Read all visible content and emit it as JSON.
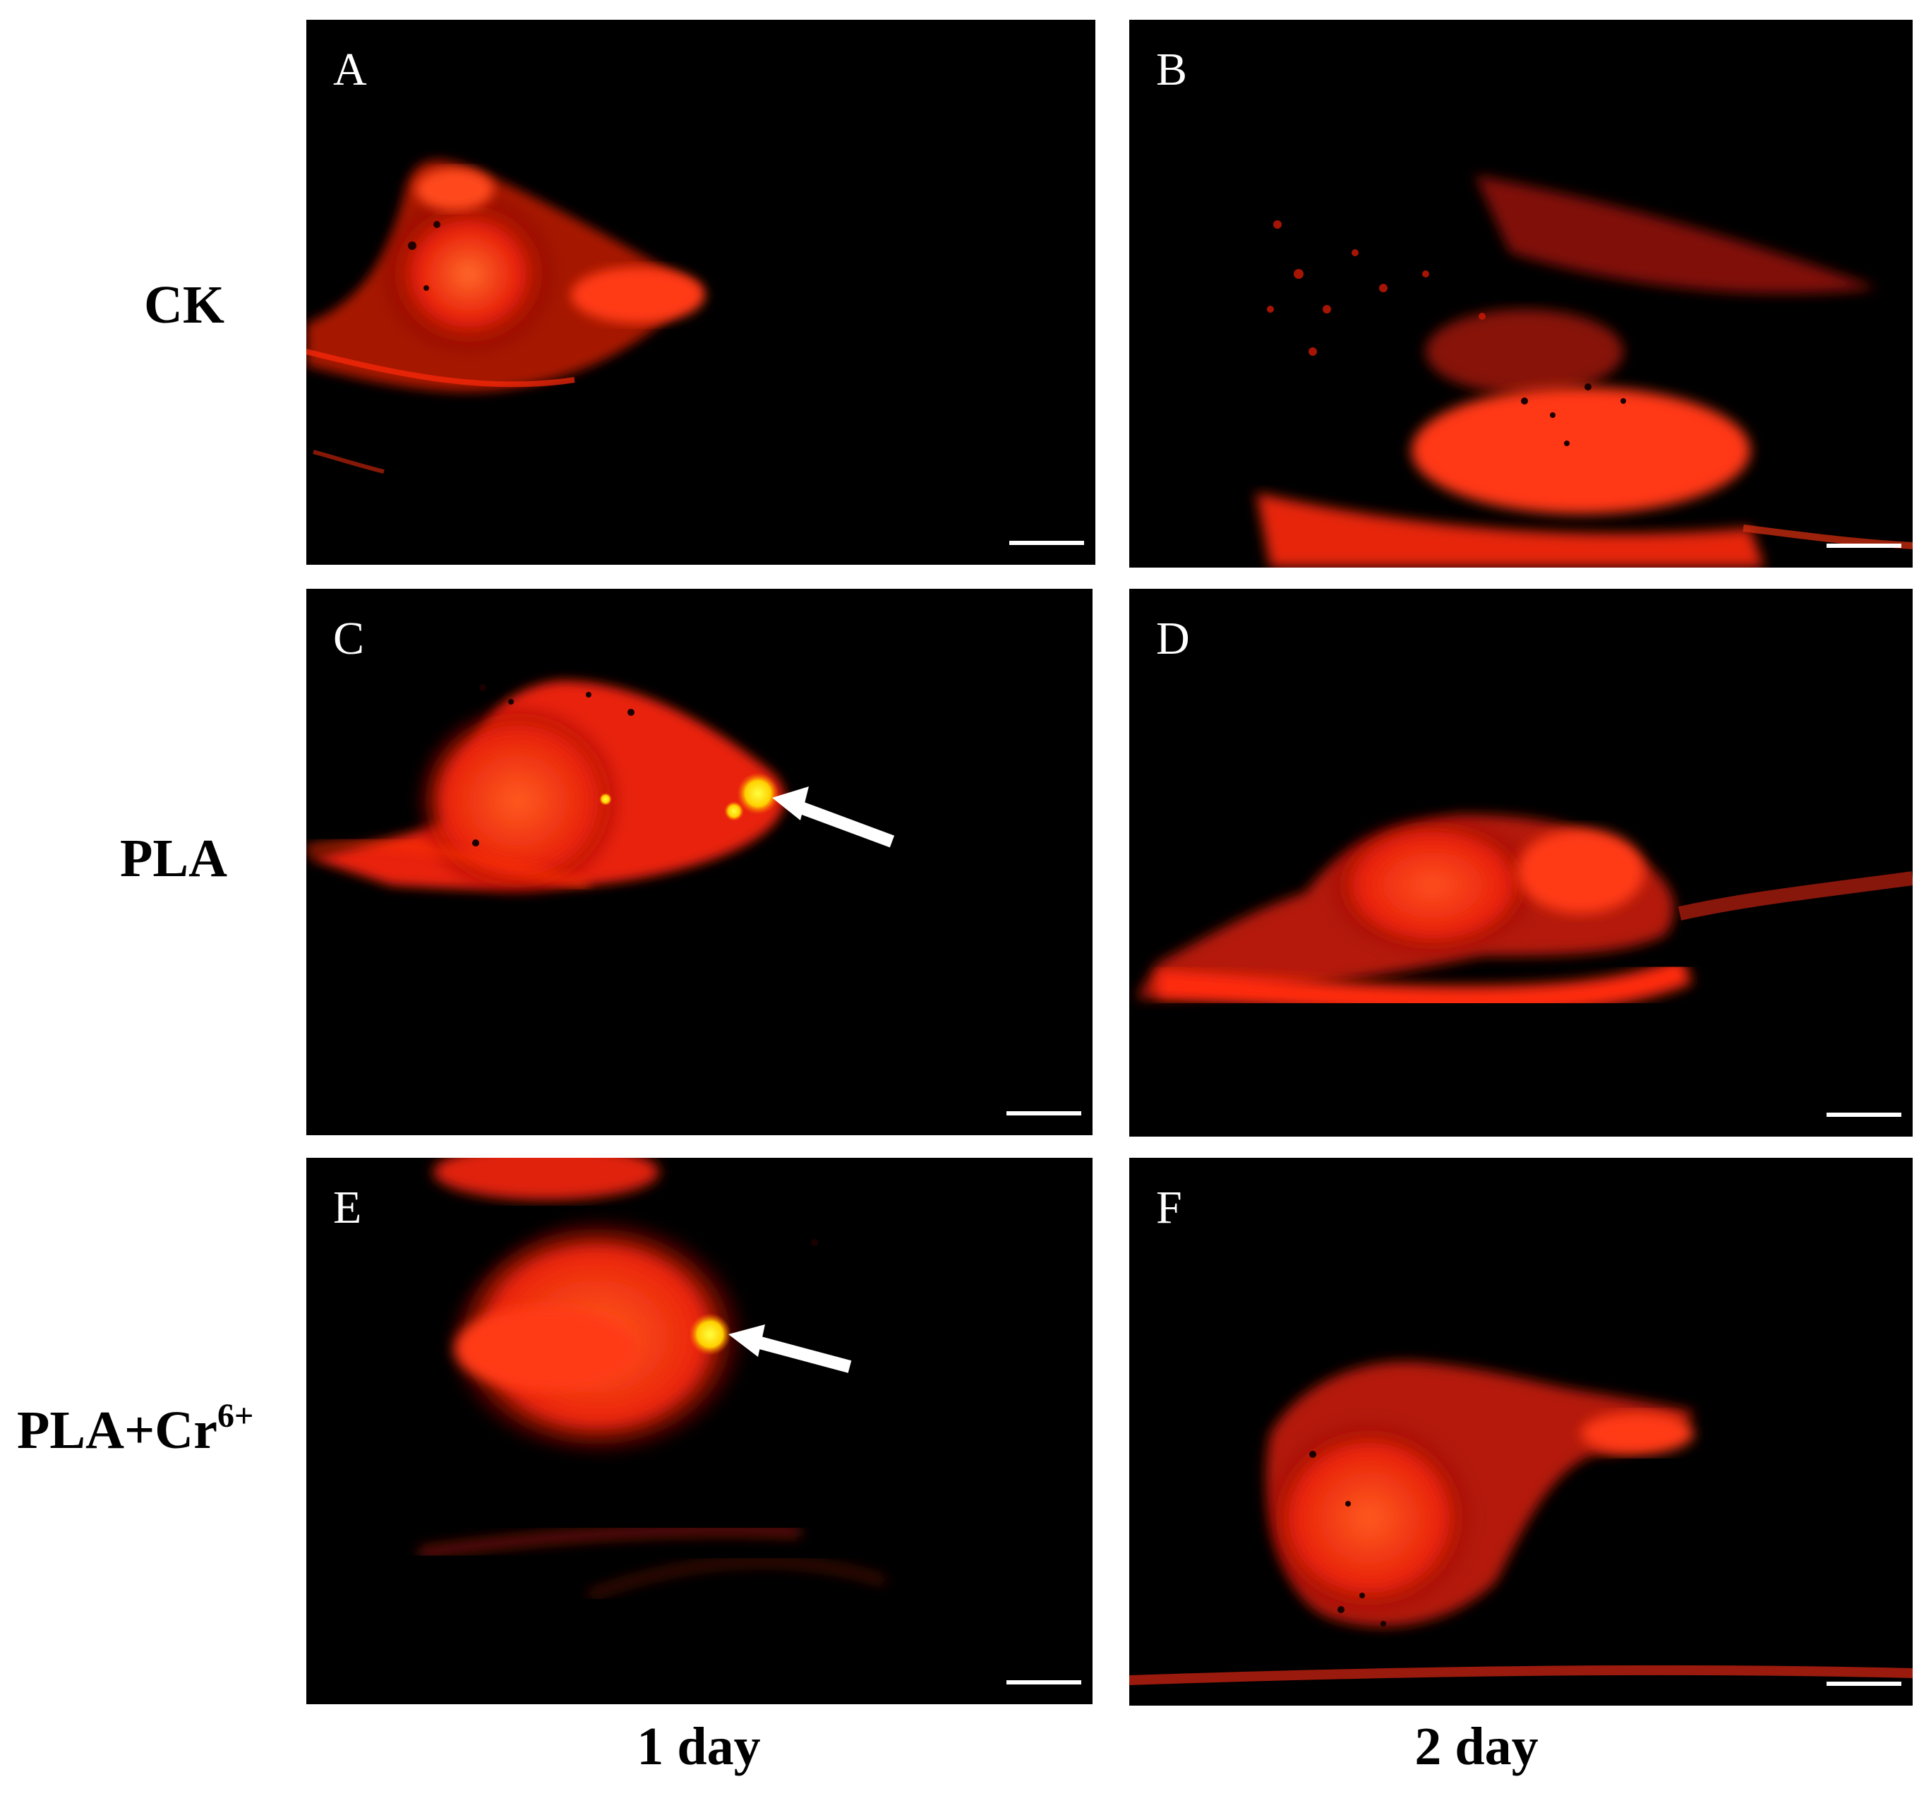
{
  "figure": {
    "rows": [
      {
        "label": "CK",
        "sup": ""
      },
      {
        "label": "PLA",
        "sup": ""
      },
      {
        "label": "PLA+Cr",
        "sup": "6+"
      }
    ],
    "columns": [
      "1 day",
      "2 day"
    ],
    "panels": [
      {
        "letter": "A",
        "condition": "CK",
        "day": "1 day",
        "has_arrow": false
      },
      {
        "letter": "B",
        "condition": "CK",
        "day": "2 day",
        "has_arrow": false
      },
      {
        "letter": "C",
        "condition": "PLA",
        "day": "1 day",
        "has_arrow": true
      },
      {
        "letter": "D",
        "condition": "PLA",
        "day": "2 day",
        "has_arrow": false
      },
      {
        "letter": "E",
        "condition": "PLA+Cr6+",
        "day": "1 day",
        "has_arrow": true
      },
      {
        "letter": "F",
        "condition": "PLA+Cr6+",
        "day": "2 day",
        "has_arrow": false
      }
    ],
    "colors": {
      "background": "#000000",
      "fluorescence_red": "#ff2a0a",
      "fluorescence_yellow": "#ffff00",
      "arrow": "#ffffff",
      "scale_bar": "#ffffff"
    }
  }
}
